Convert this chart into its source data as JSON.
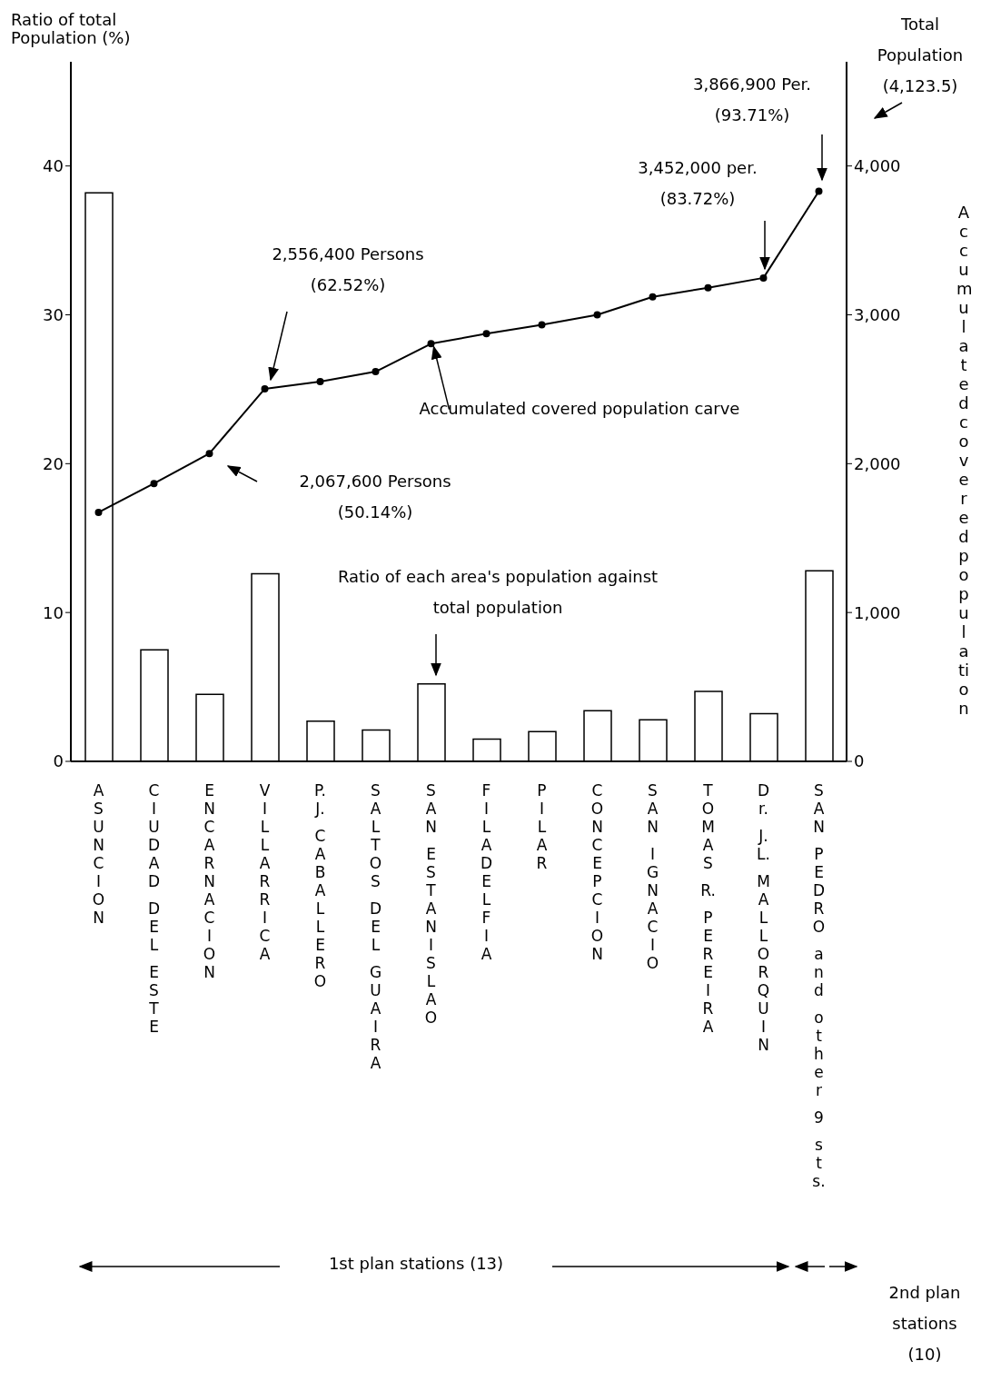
{
  "chart_data": {
    "type": "bar",
    "ylabel": "Ratio of total Population (%)",
    "y2label": "Accumulated covered population",
    "categories": [
      "ASUNCION",
      "CIUDAD DEL ESTE",
      "ENCARNACION",
      "VILLARRICA",
      "P.J. CABALLERO",
      "SALTOS DEL GUAIRA",
      "SAN ESTANISLAO",
      "FILADELFIA",
      "PILAR",
      "CONCEPCION",
      "SAN IGNACIO",
      "TOMAS R. PEREIRA",
      "Dr. J.L. MALLORQUIN",
      "SAN PEDRO and other 9 sts."
    ],
    "series": [
      {
        "color": "#ffffff",
        "values": [
          38.2,
          7.5,
          4.5,
          12.6,
          2.7,
          2.1,
          5.2,
          1.5,
          2.0,
          3.4,
          2.8,
          4.7,
          3.2,
          12.8
        ]
      },
      {
        "type": "line",
        "axis": "y2",
        "color": "#000000",
        "values": [
          1673,
          1867,
          2068,
          2503,
          2552,
          2618,
          2806,
          2873,
          2933,
          3000,
          3121,
          3182,
          3248,
          3830
        ]
      }
    ],
    "ylim": [
      0,
      47
    ],
    "yticks": [
      0,
      10,
      20,
      30,
      40
    ],
    "y2lim": [
      0,
      4700
    ],
    "y2ticks": [
      0,
      {
        "value": 1000,
        "label": "1,000"
      },
      {
        "value": 2000,
        "label": "2,000"
      },
      {
        "value": 3000,
        "label": "3,000"
      },
      {
        "value": 4000,
        "label": "4,000"
      }
    ],
    "marker": "circle",
    "line_style": "solid",
    "annotations": [
      "2,556,400 Persons (62.52%)",
      "2,067,600 Persons (50.14%)",
      "3,452,000 per. (83.72%)",
      "3,866,900 Per. (93.71%)",
      {
        "text": "Accumulated covered population carve",
        "x": "SAN ESTANISLAO",
        "y": 28.1
      },
      "Ratio of each area's population against total population",
      "Total Population (4,123.5)",
      "1st plan stations (13)",
      "2nd plan stations (10)"
    ]
  }
}
